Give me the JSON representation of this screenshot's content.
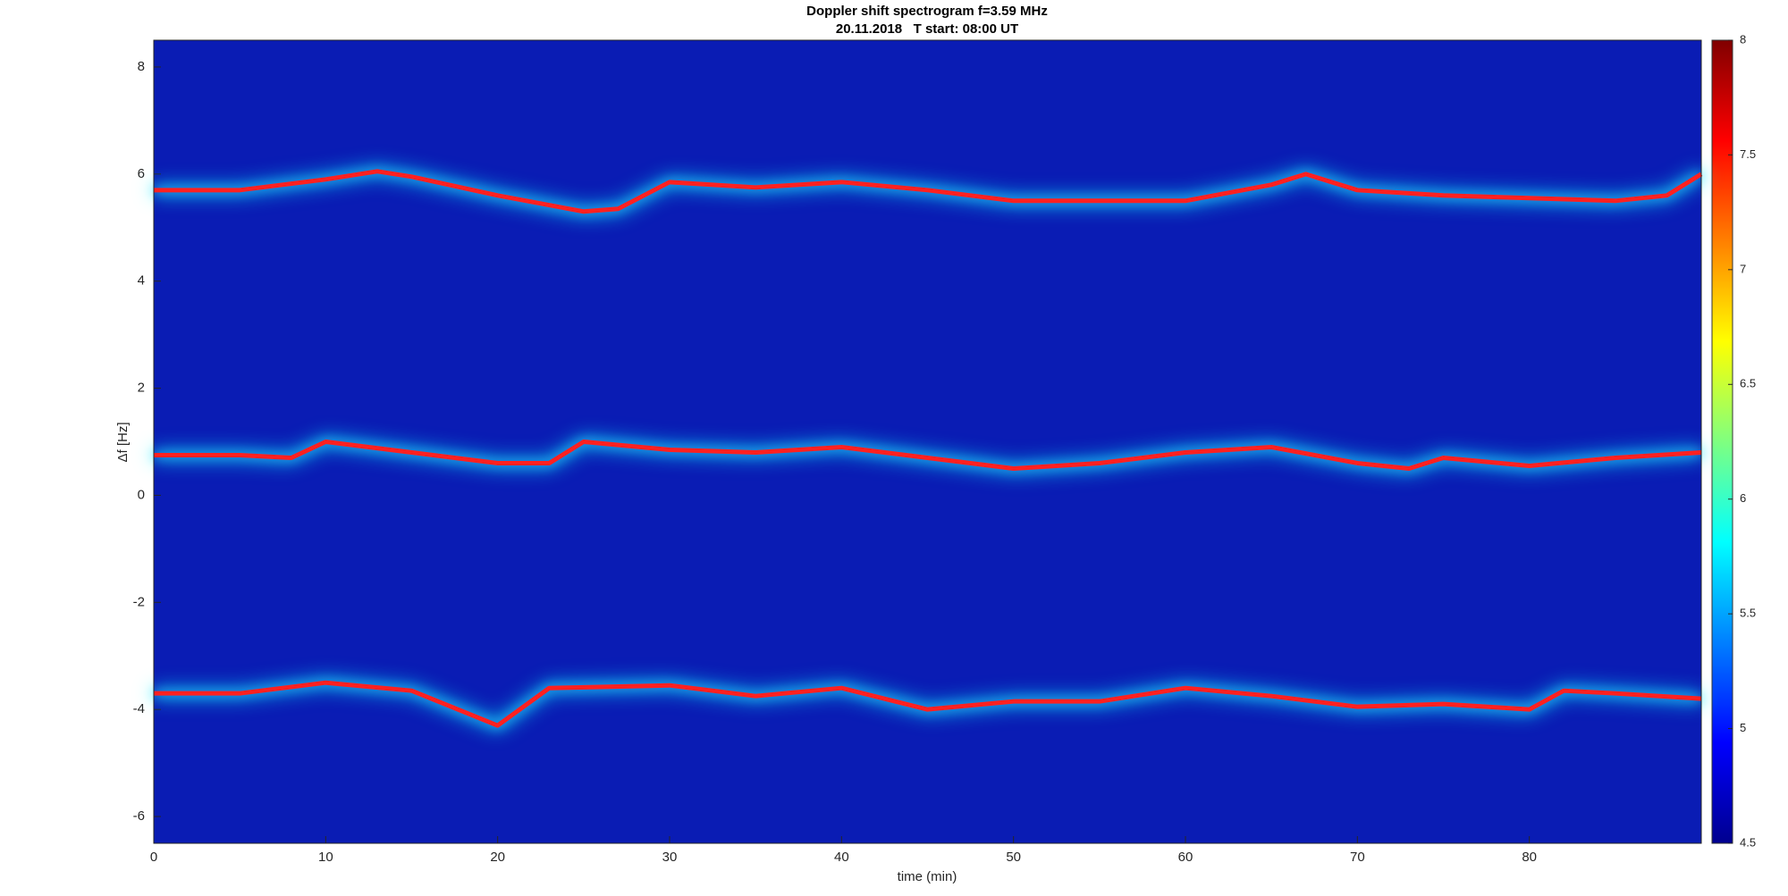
{
  "chart_data": {
    "type": "spectrogram",
    "title": "Doppler shift spectrogram f=3.59 MHz",
    "subtitle": "20.11.2018   T start: 08:00 UT",
    "x_label": "time (min)",
    "y_label": "Δf [Hz]",
    "xlim": [
      0,
      90
    ],
    "xticks": [
      0,
      10,
      20,
      30,
      40,
      50,
      60,
      70,
      80
    ],
    "ylim": [
      -6.5,
      8.5
    ],
    "yticks": [
      -6,
      -4,
      -2,
      0,
      2,
      4,
      6,
      8
    ],
    "colormap": "jet",
    "clim": [
      4.5,
      8
    ],
    "cticks": [
      4.5,
      5,
      5.5,
      6,
      6.5,
      7,
      7.5,
      8
    ],
    "series": [
      {
        "color": "#ff2020",
        "x": [
          0,
          5,
          10,
          13,
          15,
          20,
          25,
          27,
          30,
          35,
          40,
          45,
          50,
          55,
          60,
          65,
          67,
          70,
          75,
          80,
          85,
          88,
          90
        ],
        "values": [
          5.7,
          5.7,
          5.9,
          6.05,
          5.95,
          5.6,
          5.3,
          5.35,
          5.85,
          5.75,
          5.85,
          5.7,
          5.5,
          5.5,
          5.5,
          5.8,
          6.0,
          5.7,
          5.6,
          5.55,
          5.5,
          5.6,
          6.0
        ]
      },
      {
        "color": "#ff2020",
        "x": [
          0,
          5,
          8,
          10,
          15,
          20,
          23,
          25,
          30,
          35,
          40,
          45,
          50,
          55,
          60,
          65,
          70,
          73,
          75,
          80,
          85,
          90
        ],
        "values": [
          0.75,
          0.75,
          0.7,
          1.0,
          0.8,
          0.6,
          0.6,
          1.0,
          0.85,
          0.8,
          0.9,
          0.7,
          0.5,
          0.6,
          0.8,
          0.9,
          0.6,
          0.5,
          0.7,
          0.55,
          0.7,
          0.8
        ]
      },
      {
        "color": "#ff2020",
        "x": [
          0,
          5,
          10,
          15,
          20,
          23,
          30,
          35,
          40,
          45,
          50,
          55,
          60,
          65,
          70,
          75,
          80,
          82,
          85,
          90
        ],
        "values": [
          -3.7,
          -3.7,
          -3.5,
          -3.65,
          -4.3,
          -3.6,
          -3.55,
          -3.75,
          -3.6,
          -4.0,
          -3.85,
          -3.85,
          -3.6,
          -3.75,
          -3.95,
          -3.9,
          -4.0,
          -3.65,
          -3.7,
          -3.8
        ]
      }
    ]
  }
}
